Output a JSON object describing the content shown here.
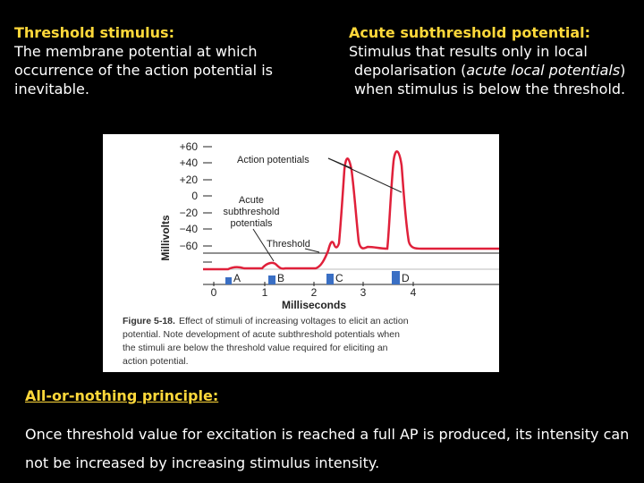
{
  "left": {
    "heading": "Threshold stimulus:",
    "body": "The membrane potential at which occurrence of the action potential is inevitable."
  },
  "right": {
    "heading": "Acute subthreshold potential:",
    "line1": "Stimulus that results only in local",
    "line2_pre": "depolarisation (",
    "line2_italic": "acute local potentials",
    "line2_post": ")",
    "line3": "when stimulus is below the threshold."
  },
  "figure": {
    "y_axis_label": "Millivolts",
    "x_axis_label": "Milliseconds",
    "y_ticks": [
      "+60",
      "+40",
      "+20",
      "0",
      "−20",
      "−40",
      "−60"
    ],
    "x_ticks": [
      "0",
      "1",
      "2",
      "3",
      "4"
    ],
    "label_action_potentials": "Action potentials",
    "label_acute_1": "Acute",
    "label_acute_2": "subthreshold",
    "label_acute_3": "potentials",
    "label_threshold": "Threshold",
    "stimulus_labels": [
      "A",
      "B",
      "C",
      "D"
    ],
    "caption_title": "Figure 5-18.",
    "caption_line1": "Effect of stimuli of increasing voltages to elicit an action",
    "caption_line2": "potential. Note development of acute subthreshold potentials when",
    "caption_line3": "the stimuli are below the threshold value required for eliciting an",
    "caption_line4": "action potential.",
    "colors": {
      "trace": "#e0203a",
      "stimulus": "#3a6fc4",
      "axes": "#222222"
    }
  },
  "bottom": {
    "heading": "All-or-nothing principle:",
    "body": "Once threshold value for excitation is reached a full AP is produced, its intensity can not be increased by increasing stimulus intensity."
  }
}
